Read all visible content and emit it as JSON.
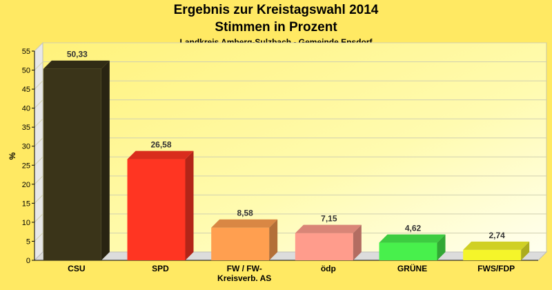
{
  "chart_data": {
    "type": "bar",
    "title": "Ergebnis zur Kreistagswahl 2014",
    "subtitle": "Stimmen in Prozent",
    "caption": "Landkreis Amberg-Sulzbach - Gemeinde Ensdorf",
    "ylabel": "%",
    "ylim": [
      0,
      55
    ],
    "yticks": [
      0,
      5,
      10,
      15,
      20,
      25,
      30,
      35,
      40,
      45,
      50,
      55
    ],
    "grid": true,
    "categories": [
      [
        "CSU"
      ],
      [
        "SPD"
      ],
      [
        "FW / FW-",
        "Kreisverb. AS"
      ],
      [
        "ödp"
      ],
      [
        "GRÜNE"
      ],
      [
        "FWS/FDP"
      ]
    ],
    "values": [
      50.33,
      26.58,
      8.58,
      7.15,
      4.62,
      2.74
    ],
    "value_labels": [
      "50,33",
      "26,58",
      "8,58",
      "7,15",
      "4,62",
      "2,74"
    ],
    "colors": [
      "#3a3419",
      "#ff3522",
      "#ff9f50",
      "#ff9c8c",
      "#48f04c",
      "#f5f52a"
    ]
  }
}
